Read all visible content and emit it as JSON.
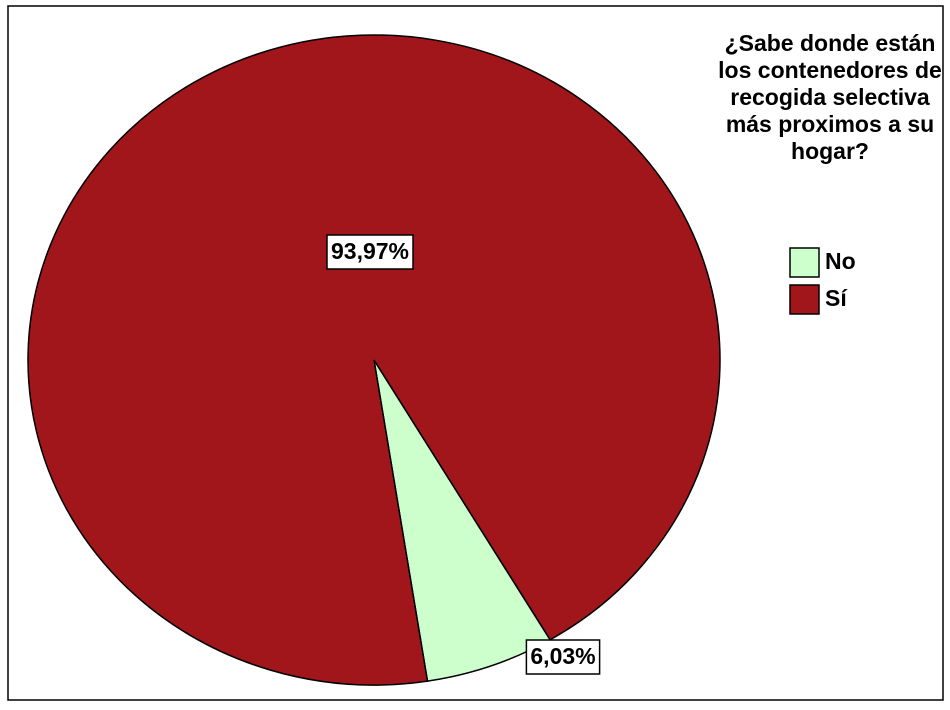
{
  "chart_data": {
    "type": "pie",
    "legend_title": "¿Sabe donde están los contenedores de recogida selectiva más proximos a su hogar?",
    "categories": [
      "No",
      "Sí"
    ],
    "values": [
      6.03,
      93.97
    ],
    "value_labels": [
      "6,03%",
      "93,97%"
    ],
    "colors": [
      "#ccffcc",
      "#a0161b"
    ],
    "legend": "right"
  }
}
